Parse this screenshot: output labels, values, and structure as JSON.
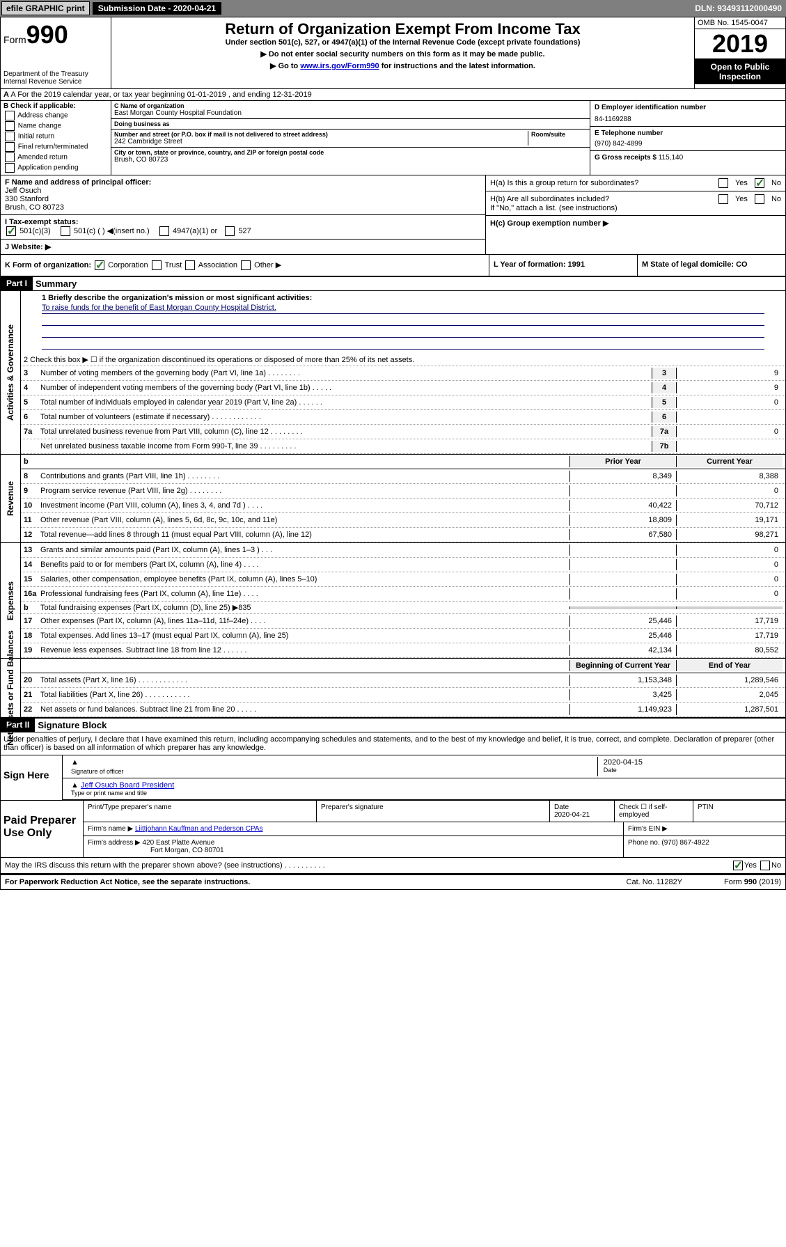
{
  "topbar": {
    "efile": "efile GRAPHIC print",
    "submission_label": "Submission Date - 2020-04-21",
    "dln": "DLN: 93493112000490"
  },
  "header": {
    "form_label": "Form",
    "form_number": "990",
    "dept": "Department of the Treasury\nInternal Revenue Service",
    "title": "Return of Organization Exempt From Income Tax",
    "subtitle": "Under section 501(c), 527, or 4947(a)(1) of the Internal Revenue Code (except private foundations)",
    "note1": "▶ Do not enter social security numbers on this form as it may be made public.",
    "note2_pre": "▶ Go to ",
    "note2_link": "www.irs.gov/Form990",
    "note2_post": " for instructions and the latest information.",
    "omb": "OMB No. 1545-0047",
    "year": "2019",
    "open_public": "Open to Public Inspection"
  },
  "rowA": "A  For the 2019 calendar year, or tax year beginning 01-01-2019     , and ending 12-31-2019",
  "colB": {
    "label": "B Check if applicable:",
    "opts": [
      "Address change",
      "Name change",
      "Initial return",
      "Final return/terminated",
      "Amended return",
      "Application pending"
    ]
  },
  "colC": {
    "name_label": "C Name of organization",
    "name": "East Morgan County Hospital Foundation",
    "dba_label": "Doing business as",
    "dba": "",
    "addr_label": "Number and street (or P.O. box if mail is not delivered to street address)",
    "room_label": "Room/suite",
    "addr": "242 Cambridge Street",
    "city_label": "City or town, state or province, country, and ZIP or foreign postal code",
    "city": "Brush, CO  80723"
  },
  "colD": {
    "ein_label": "D Employer identification number",
    "ein": "84-1169288",
    "phone_label": "E Telephone number",
    "phone": "(970) 842-4899",
    "gross_label": "G Gross receipts $",
    "gross": "115,140"
  },
  "rowF": {
    "label": "F  Name and address of principal officer:",
    "name": "Jeff Osuch",
    "addr1": "330 Stanford",
    "addr2": "Brush, CO  80723"
  },
  "rowH": {
    "a": "H(a)  Is this a group return for subordinates?",
    "b": "H(b)  Are all subordinates included?",
    "b_note": "If \"No,\" attach a list. (see instructions)",
    "c": "H(c)  Group exemption number ▶"
  },
  "rowI": {
    "label": "I   Tax-exempt status:",
    "opt1": "501(c)(3)",
    "opt2": "501(c) (   ) ◀(insert no.)",
    "opt3": "4947(a)(1) or",
    "opt4": "527"
  },
  "rowJ": "J   Website: ▶",
  "rowK": {
    "label": "K Form of organization:",
    "opts": [
      "Corporation",
      "Trust",
      "Association",
      "Other ▶"
    ]
  },
  "rowL": "L Year of formation: 1991",
  "rowM": "M State of legal domicile: CO",
  "part1": {
    "header": "Part I",
    "title": "Summary",
    "line1_label": "1  Briefly describe the organization's mission or most significant activities:",
    "mission": "To raise funds for the benefit of East Morgan County Hospital District.",
    "line2": "2    Check this box ▶ ☐  if the organization discontinued its operations or disposed of more than 25% of its net assets.",
    "lines_single": [
      {
        "n": "3",
        "desc": "Number of voting members of the governing body (Part VI, line 1a)  .    .    .    .    .    .    .    .",
        "box": "3",
        "val": "9"
      },
      {
        "n": "4",
        "desc": "Number of independent voting members of the governing body (Part VI, line 1b)   .    .    .    .    .",
        "box": "4",
        "val": "9"
      },
      {
        "n": "5",
        "desc": "Total number of individuals employed in calendar year 2019 (Part V, line 2a)   .    .    .    .    .    .",
        "box": "5",
        "val": "0"
      },
      {
        "n": "6",
        "desc": "Total number of volunteers (estimate if necessary)   .    .    .    .    .    .    .    .    .    .    .    .",
        "box": "6",
        "val": ""
      },
      {
        "n": "7a",
        "desc": "Total unrelated business revenue from Part VIII, column (C), line 12   .    .    .    .    .    .    .    .",
        "box": "7a",
        "val": "0"
      },
      {
        "n": "",
        "desc": "Net unrelated business taxable income from Form 990-T, line 39   .    .    .    .    .    .    .    .    .",
        "box": "7b",
        "val": ""
      }
    ],
    "two_year_header": {
      "b": "b",
      "prior": "Prior Year",
      "current": "Current Year"
    },
    "revenue_lines": [
      {
        "n": "8",
        "desc": "Contributions and grants (Part VIII, line 1h)   .    .    .    .    .    .    .    .",
        "p": "8,349",
        "c": "8,388"
      },
      {
        "n": "9",
        "desc": "Program service revenue (Part VIII, line 2g)   .    .    .    .    .    .    .    .",
        "p": "",
        "c": "0"
      },
      {
        "n": "10",
        "desc": "Investment income (Part VIII, column (A), lines 3, 4, and 7d )   .    .    .    .",
        "p": "40,422",
        "c": "70,712"
      },
      {
        "n": "11",
        "desc": "Other revenue (Part VIII, column (A), lines 5, 6d, 8c, 9c, 10c, and 11e)",
        "p": "18,809",
        "c": "19,171"
      },
      {
        "n": "12",
        "desc": "Total revenue—add lines 8 through 11 (must equal Part VIII, column (A), line 12)",
        "p": "67,580",
        "c": "98,271"
      }
    ],
    "expense_lines": [
      {
        "n": "13",
        "desc": "Grants and similar amounts paid (Part IX, column (A), lines 1–3 )   .    .    .",
        "p": "",
        "c": "0"
      },
      {
        "n": "14",
        "desc": "Benefits paid to or for members (Part IX, column (A), line 4)   .    .    .    .",
        "p": "",
        "c": "0"
      },
      {
        "n": "15",
        "desc": "Salaries, other compensation, employee benefits (Part IX, column (A), lines 5–10)",
        "p": "",
        "c": "0"
      },
      {
        "n": "16a",
        "desc": "Professional fundraising fees (Part IX, column (A), line 11e)   .    .    .    .",
        "p": "",
        "c": "0"
      },
      {
        "n": "b",
        "desc": "Total fundraising expenses (Part IX, column (D), line 25) ▶835",
        "p": "gray",
        "c": "gray"
      },
      {
        "n": "17",
        "desc": "Other expenses (Part IX, column (A), lines 11a–11d, 11f–24e)   .    .    .    .",
        "p": "25,446",
        "c": "17,719"
      },
      {
        "n": "18",
        "desc": "Total expenses. Add lines 13–17 (must equal Part IX, column (A), line 25)",
        "p": "25,446",
        "c": "17,719"
      },
      {
        "n": "19",
        "desc": "Revenue less expenses. Subtract line 18 from line 12   .    .    .    .    .    .",
        "p": "42,134",
        "c": "80,552"
      }
    ],
    "net_header": {
      "begin": "Beginning of Current Year",
      "end": "End of Year"
    },
    "net_lines": [
      {
        "n": "20",
        "desc": "Total assets (Part X, line 16)   .    .    .    .    .    .    .    .    .    .    .    .",
        "p": "1,153,348",
        "c": "1,289,546"
      },
      {
        "n": "21",
        "desc": "Total liabilities (Part X, line 26)   .    .    .    .    .    .    .    .    .    .    .",
        "p": "3,425",
        "c": "2,045"
      },
      {
        "n": "22",
        "desc": "Net assets or fund balances. Subtract line 21 from line 20   .    .    .    .    .",
        "p": "1,149,923",
        "c": "1,287,501"
      }
    ]
  },
  "tabs": {
    "gov": "Activities & Governance",
    "rev": "Revenue",
    "exp": "Expenses",
    "net": "Net Assets or Fund Balances"
  },
  "part2": {
    "header": "Part II",
    "title": "Signature Block",
    "declaration": "Under penalties of perjury, I declare that I have examined this return, including accompanying schedules and statements, and to the best of my knowledge and belief, it is true, correct, and complete. Declaration of preparer (other than officer) is based on all information of which preparer has any knowledge.",
    "sign_here": "Sign Here",
    "sig_officer_label": "Signature of officer",
    "sig_date": "2020-04-15",
    "date_label": "Date",
    "officer_name": "Jeff Osuch  Board President",
    "officer_name_label": "Type or print name and title",
    "paid_label": "Paid Preparer Use Only",
    "prep_name_label": "Print/Type preparer's name",
    "prep_sig_label": "Preparer's signature",
    "prep_date_label": "Date",
    "prep_date": "2020-04-21",
    "self_emp": "Check ☐ if self-employed",
    "ptin_label": "PTIN",
    "firm_name_label": "Firm's name   ▶",
    "firm_name": "Liittjohann Kauffman and Pederson CPAs",
    "firm_ein_label": "Firm's EIN ▶",
    "firm_addr_label": "Firm's address ▶",
    "firm_addr1": "420 East Platte Avenue",
    "firm_addr2": "Fort Morgan, CO  80701",
    "firm_phone_label": "Phone no.",
    "firm_phone": "(970) 867-4922",
    "discuss": "May the IRS discuss this return with the preparer shown above? (see instructions)   .    .    .    .    .    .    .    .    .    .",
    "yes": "Yes",
    "no": "No"
  },
  "footer": {
    "left": "For Paperwork Reduction Act Notice, see the separate instructions.",
    "mid": "Cat. No. 11282Y",
    "right": "Form 990 (2019)"
  }
}
